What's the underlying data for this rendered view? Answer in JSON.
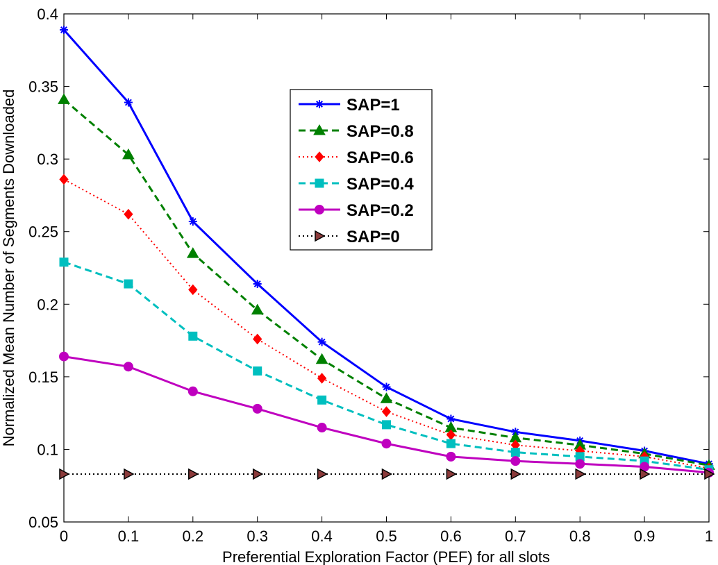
{
  "chart_data": {
    "type": "line",
    "title": "",
    "xlabel": "Preferential Exploration Factor (PEF) for all slots",
    "ylabel": "Normalized Mean Number of Segments Downloaded",
    "xlim": [
      0,
      1
    ],
    "ylim": [
      0.05,
      0.4
    ],
    "x": [
      0,
      0.1,
      0.2,
      0.3,
      0.4,
      0.5,
      0.6,
      0.7,
      0.8,
      0.9,
      1
    ],
    "x_ticks": [
      "0",
      "0.1",
      "0.2",
      "0.3",
      "0.4",
      "0.5",
      "0.6",
      "0.7",
      "0.8",
      "0.9",
      "1"
    ],
    "y_ticks": [
      "0.05",
      "0.1",
      "0.15",
      "0.2",
      "0.25",
      "0.3",
      "0.35",
      "0.4"
    ],
    "grid": false,
    "legend_position": "top-center",
    "series": [
      {
        "name": "SAP=1",
        "color": "#0000ff",
        "dash": "solid",
        "marker": "star",
        "values": [
          0.389,
          0.339,
          0.257,
          0.214,
          0.174,
          0.143,
          0.121,
          0.112,
          0.106,
          0.099,
          0.09
        ]
      },
      {
        "name": "SAP=0.8",
        "color": "#008000",
        "dash": "dashed",
        "marker": "triangle-up",
        "values": [
          0.341,
          0.303,
          0.235,
          0.196,
          0.162,
          0.135,
          0.115,
          0.108,
          0.103,
          0.097,
          0.089
        ]
      },
      {
        "name": "SAP=0.6",
        "color": "#ff0000",
        "dash": "dotted",
        "marker": "diamond",
        "values": [
          0.286,
          0.262,
          0.21,
          0.176,
          0.149,
          0.126,
          0.11,
          0.103,
          0.099,
          0.095,
          0.087
        ]
      },
      {
        "name": "SAP=0.4",
        "color": "#00bfbf",
        "dash": "dashed",
        "marker": "square",
        "values": [
          0.229,
          0.214,
          0.178,
          0.154,
          0.134,
          0.117,
          0.104,
          0.098,
          0.095,
          0.092,
          0.086
        ]
      },
      {
        "name": "SAP=0.2",
        "color": "#bf00bf",
        "dash": "solid",
        "marker": "circle",
        "values": [
          0.164,
          0.157,
          0.14,
          0.128,
          0.115,
          0.104,
          0.095,
          0.092,
          0.09,
          0.088,
          0.084
        ]
      },
      {
        "name": "SAP=0",
        "color": "#000000",
        "dash": "dotted",
        "marker": "triangle-right",
        "values": [
          0.083,
          0.083,
          0.083,
          0.083,
          0.083,
          0.083,
          0.083,
          0.083,
          0.083,
          0.083,
          0.083
        ]
      }
    ]
  }
}
